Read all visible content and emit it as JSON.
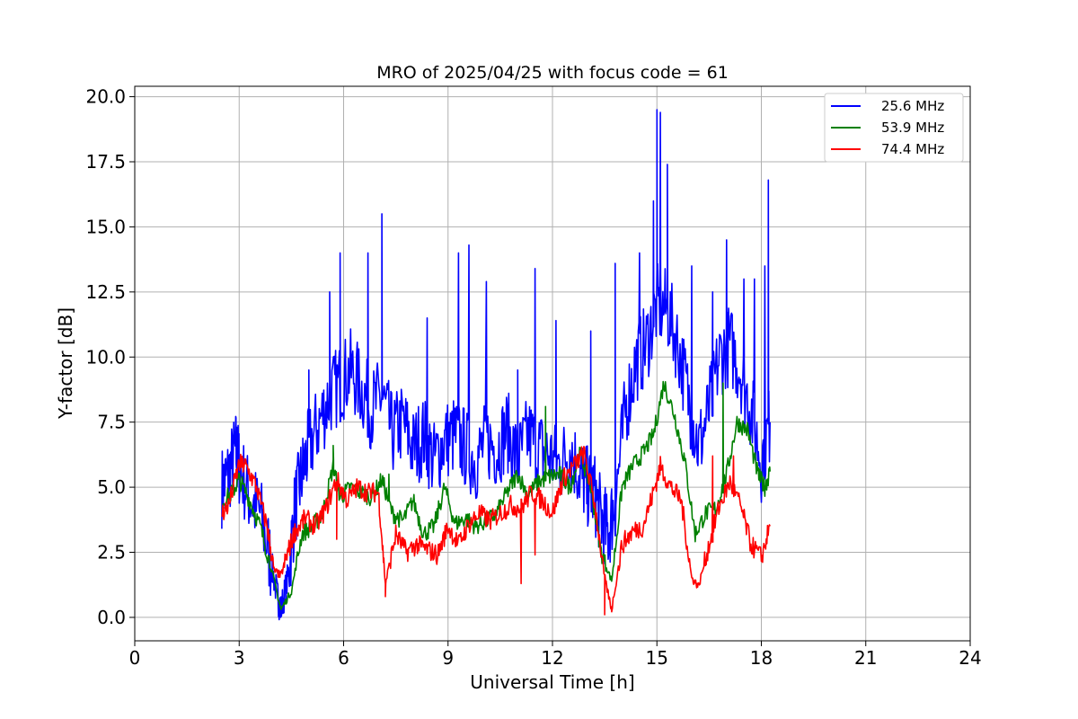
{
  "chart_data": {
    "type": "line",
    "title": "MRO of 2025/04/25 with focus code = 61",
    "xlabel": "Universal Time [h]",
    "ylabel": "Y-factor [dB]",
    "xlim": [
      0,
      24
    ],
    "ylim": [
      -0.9,
      20.4
    ],
    "x_ticks": [
      0,
      3,
      6,
      9,
      12,
      15,
      18,
      21,
      24
    ],
    "x_tick_labels": [
      "0",
      "3",
      "6",
      "9",
      "12",
      "15",
      "18",
      "21",
      "24"
    ],
    "y_ticks": [
      0.0,
      2.5,
      5.0,
      7.5,
      10.0,
      12.5,
      15.0,
      17.5,
      20.0
    ],
    "y_tick_labels": [
      "0.0",
      "2.5",
      "5.0",
      "7.5",
      "10.0",
      "12.5",
      "15.0",
      "17.5",
      "20.0"
    ],
    "grid": true,
    "legend_position": "top-right",
    "series": [
      {
        "name": "25.6 MHz",
        "color": "#0000ff",
        "x": [
          2.5,
          2.7,
          2.9,
          3.0,
          3.3,
          3.6,
          3.9,
          4.1,
          4.2,
          4.4,
          4.6,
          4.8,
          5.0,
          5.3,
          5.6,
          5.9,
          6.2,
          6.5,
          6.8,
          7.1,
          7.4,
          7.7,
          8.0,
          8.3,
          8.6,
          8.9,
          9.2,
          9.5,
          9.8,
          10.1,
          10.4,
          10.7,
          11.0,
          11.3,
          11.6,
          11.9,
          12.2,
          12.5,
          12.8,
          13.0,
          13.2,
          13.4,
          13.6,
          13.8,
          14.1,
          14.4,
          14.7,
          15.0,
          15.3,
          15.6,
          15.9,
          16.2,
          16.5,
          16.8,
          17.1,
          17.4,
          17.7,
          18.0,
          18.25
        ],
        "y": [
          5.0,
          5.5,
          6.4,
          5.8,
          4.6,
          4.0,
          2.2,
          0.8,
          0.3,
          1.5,
          4.2,
          5.5,
          6.5,
          7.5,
          8.5,
          9.0,
          9.5,
          8.8,
          8.0,
          8.5,
          7.0,
          7.5,
          6.5,
          7.0,
          6.0,
          6.8,
          7.0,
          6.5,
          6.0,
          6.8,
          6.5,
          7.2,
          6.0,
          7.0,
          6.5,
          6.2,
          5.8,
          6.5,
          5.5,
          5.0,
          4.8,
          3.8,
          3.2,
          4.5,
          8.0,
          9.8,
          10.5,
          12.0,
          11.8,
          10.5,
          8.5,
          6.5,
          8.0,
          10.0,
          10.5,
          9.5,
          8.0,
          6.0,
          7.5
        ],
        "spikes": [
          [
            5.0,
            9.5
          ],
          [
            5.6,
            12.5
          ],
          [
            5.9,
            14.0
          ],
          [
            6.7,
            14.0
          ],
          [
            7.1,
            15.5
          ],
          [
            8.4,
            11.5
          ],
          [
            9.3,
            14.0
          ],
          [
            9.6,
            14.3
          ],
          [
            10.1,
            12.9
          ],
          [
            11.0,
            9.5
          ],
          [
            11.5,
            13.4
          ],
          [
            12.1,
            11.4
          ],
          [
            13.1,
            11.0
          ],
          [
            13.8,
            13.6
          ],
          [
            14.5,
            14.0
          ],
          [
            14.9,
            16.0
          ],
          [
            15.0,
            19.5
          ],
          [
            15.1,
            19.4
          ],
          [
            15.3,
            17.4
          ],
          [
            16.0,
            13.5
          ],
          [
            16.6,
            12.5
          ],
          [
            17.0,
            14.5
          ],
          [
            17.5,
            13.0
          ],
          [
            17.8,
            13.0
          ],
          [
            18.1,
            13.5
          ],
          [
            18.2,
            16.8
          ]
        ]
      },
      {
        "name": "53.9 MHz",
        "color": "#008000",
        "x": [
          2.5,
          2.8,
          3.0,
          3.3,
          3.6,
          3.9,
          4.2,
          4.5,
          4.8,
          5.1,
          5.4,
          5.7,
          5.9,
          6.2,
          6.5,
          6.8,
          7.1,
          7.4,
          7.7,
          8.0,
          8.3,
          8.6,
          8.9,
          9.2,
          9.5,
          9.8,
          10.1,
          10.4,
          10.7,
          11.0,
          11.3,
          11.6,
          11.9,
          12.2,
          12.5,
          12.8,
          13.1,
          13.4,
          13.7,
          14.0,
          14.3,
          14.6,
          14.9,
          15.2,
          15.5,
          15.8,
          16.1,
          16.4,
          16.7,
          17.0,
          17.3,
          17.6,
          17.9,
          18.1,
          18.25
        ],
        "y": [
          4.4,
          4.8,
          5.3,
          4.5,
          3.5,
          2.0,
          0.3,
          1.0,
          3.2,
          3.5,
          4.0,
          5.8,
          4.6,
          5.0,
          4.8,
          4.6,
          5.3,
          4.0,
          3.7,
          4.5,
          3.2,
          3.5,
          5.0,
          3.6,
          3.8,
          3.5,
          3.7,
          4.0,
          4.8,
          5.5,
          4.7,
          5.2,
          5.4,
          5.5,
          5.0,
          6.3,
          5.0,
          2.5,
          1.4,
          5.0,
          5.8,
          6.3,
          7.0,
          9.0,
          7.8,
          6.0,
          3.2,
          4.0,
          4.2,
          5.5,
          7.5,
          7.2,
          5.5,
          5.0,
          5.6
        ],
        "spikes": [
          [
            5.7,
            6.6
          ],
          [
            5.8,
            2.3
          ],
          [
            7.3,
            5.5
          ],
          [
            11.8,
            8.1
          ],
          [
            16.9,
            9.0
          ]
        ]
      },
      {
        "name": "74.4 MHz",
        "color": "#ff0000",
        "x": [
          2.5,
          2.7,
          3.0,
          3.2,
          3.5,
          3.8,
          4.0,
          4.2,
          4.4,
          4.6,
          4.9,
          5.2,
          5.5,
          5.8,
          6.1,
          6.4,
          6.7,
          7.0,
          7.2,
          7.5,
          7.8,
          8.1,
          8.4,
          8.7,
          9.0,
          9.3,
          9.6,
          9.9,
          10.2,
          10.5,
          10.8,
          11.1,
          11.4,
          11.7,
          12.0,
          12.3,
          12.6,
          12.9,
          13.2,
          13.5,
          13.7,
          14.0,
          14.3,
          14.6,
          14.9,
          15.1,
          15.4,
          15.7,
          16.0,
          16.2,
          16.5,
          16.8,
          17.1,
          17.4,
          17.7,
          18.0,
          18.25
        ],
        "y": [
          4.0,
          4.3,
          5.9,
          5.8,
          5.0,
          3.5,
          1.8,
          1.6,
          2.5,
          3.3,
          3.8,
          3.5,
          4.2,
          5.3,
          4.5,
          5.0,
          4.8,
          4.8,
          1.3,
          3.2,
          2.5,
          2.8,
          2.6,
          2.4,
          3.5,
          2.8,
          3.6,
          4.0,
          3.7,
          4.0,
          4.3,
          4.2,
          4.8,
          4.5,
          4.0,
          5.3,
          5.8,
          6.3,
          4.5,
          1.5,
          0.3,
          2.8,
          3.3,
          3.5,
          4.8,
          5.8,
          5.0,
          4.5,
          1.5,
          1.2,
          2.8,
          4.3,
          5.2,
          4.3,
          2.8,
          2.3,
          3.5
        ],
        "spikes": [
          [
            5.8,
            3.0
          ],
          [
            7.2,
            0.8
          ],
          [
            11.1,
            1.3
          ],
          [
            11.5,
            2.4
          ],
          [
            13.5,
            0.1
          ],
          [
            16.6,
            6.2
          ],
          [
            17.2,
            6.2
          ],
          [
            18.25,
            5.9
          ]
        ]
      }
    ]
  }
}
